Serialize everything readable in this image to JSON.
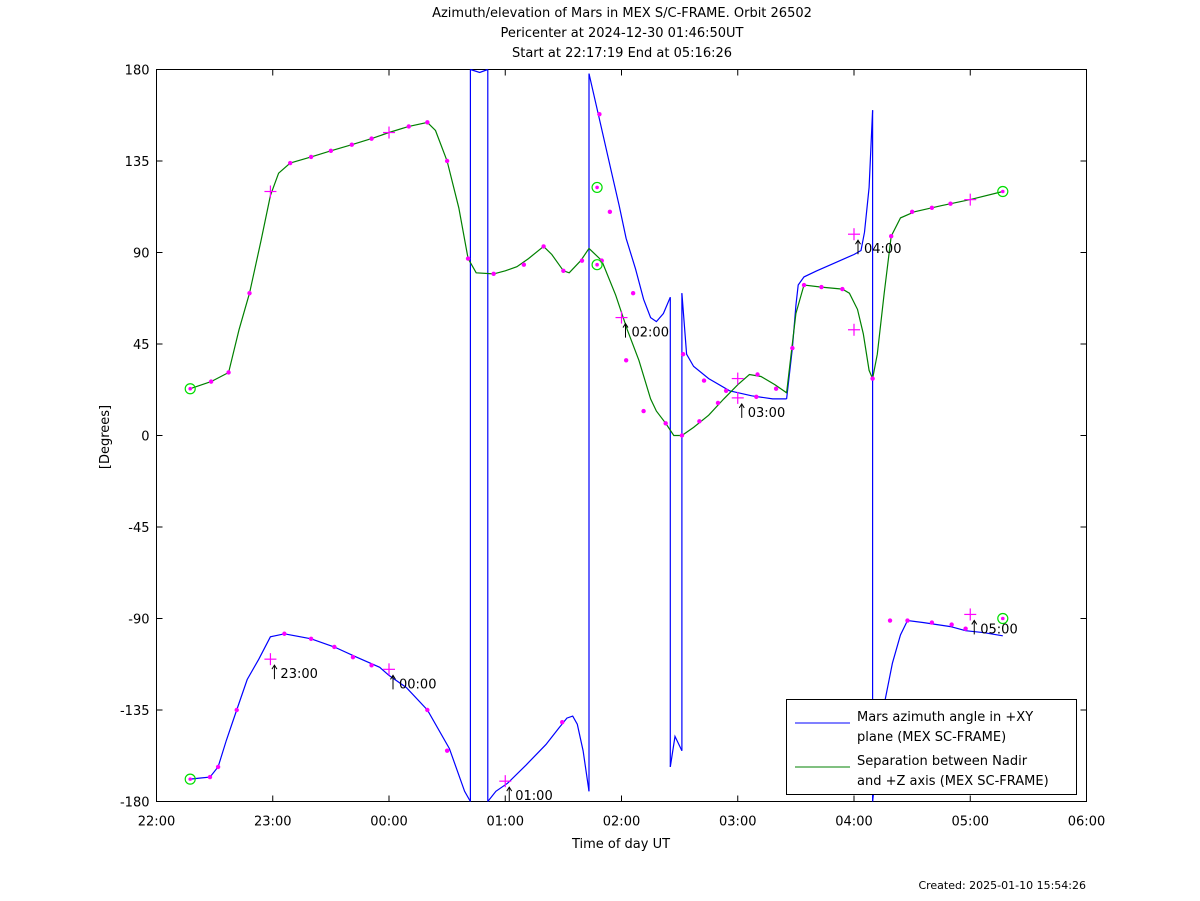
{
  "chart_data": {
    "type": "line",
    "title": "Azimuth/elevation of Mars in MEX S/C-FRAME.  Orbit 26502",
    "subtitle_1": "Pericenter at 2024-12-30 01:46:50UT",
    "subtitle_2": "Start at 22:17:19 End at 05:16:26",
    "xlabel": "Time of day UT",
    "ylabel": "[Degrees]",
    "footer": "Created: 2025-01-10 15:54:26",
    "xlim": [
      0,
      8
    ],
    "ylim": [
      -180,
      180
    ],
    "x_tick_values": [
      0,
      1,
      2,
      3,
      4,
      5,
      6,
      7,
      8
    ],
    "x_tick_labels": [
      "22:00",
      "23:00",
      "00:00",
      "01:00",
      "02:00",
      "03:00",
      "04:00",
      "05:00",
      "06:00"
    ],
    "y_tick_values": [
      -180,
      -135,
      -90,
      -45,
      0,
      45,
      90,
      135,
      180
    ],
    "y_tick_labels": [
      "-180",
      "-135",
      "-90",
      "-45",
      "0",
      "45",
      "90",
      "135",
      "180"
    ],
    "legend_position": "bottom-right",
    "colors": {
      "azimuth": "#0000ff",
      "separation": "#008000",
      "marker": "#ff00ff",
      "endpoint": "#00dd00"
    },
    "series": [
      {
        "name": "Mars azimuth angle in +XY plane (MEX SC-FRAME)",
        "legend_lines": [
          "Mars azimuth angle in +XY",
          "plane (MEX SC-FRAME)"
        ],
        "color": "#0000ff",
        "segments": [
          [
            [
              0.29,
              -169
            ],
            [
              0.37,
              -168.5
            ],
            [
              0.46,
              -168
            ],
            [
              0.53,
              -163
            ],
            [
              0.6,
              -150
            ],
            [
              0.69,
              -135
            ],
            [
              0.78,
              -120
            ],
            [
              0.88,
              -110
            ],
            [
              0.98,
              -99
            ],
            [
              1.1,
              -97.5
            ],
            [
              1.33,
              -100
            ],
            [
              1.53,
              -104
            ],
            [
              1.72,
              -109
            ],
            [
              1.92,
              -114
            ],
            [
              2.0,
              -118
            ],
            [
              2.15,
              -124
            ],
            [
              2.33,
              -135
            ],
            [
              2.52,
              -154
            ],
            [
              2.65,
              -175
            ],
            [
              2.7,
              -180
            ]
          ],
          [
            [
              2.7,
              -180
            ],
            [
              2.7,
              180
            ]
          ],
          [
            [
              2.7,
              180
            ],
            [
              2.78,
              178.5
            ],
            [
              2.85,
              180
            ]
          ],
          [
            [
              2.85,
              180
            ],
            [
              2.85,
              -180
            ]
          ],
          [
            [
              2.85,
              -180
            ],
            [
              2.92,
              -175
            ],
            [
              3.02,
              -171
            ],
            [
              3.18,
              -162
            ],
            [
              3.35,
              -152
            ],
            [
              3.46,
              -144
            ],
            [
              3.53,
              -139
            ],
            [
              3.58,
              -138
            ],
            [
              3.62,
              -142
            ],
            [
              3.67,
              -155
            ],
            [
              3.72,
              -175
            ]
          ],
          [
            [
              3.72,
              -175
            ],
            [
              3.72,
              178
            ]
          ],
          [
            [
              3.72,
              178
            ],
            [
              3.8,
              158
            ],
            [
              3.92,
              128
            ],
            [
              3.98,
              113
            ],
            [
              4.04,
              97
            ],
            [
              4.12,
              82
            ],
            [
              4.19,
              67
            ],
            [
              4.25,
              58
            ],
            [
              4.3,
              56
            ],
            [
              4.36,
              60
            ],
            [
              4.42,
              68
            ]
          ],
          [
            [
              4.42,
              68
            ],
            [
              4.42,
              -163
            ]
          ],
          [
            [
              4.42,
              -163
            ],
            [
              4.46,
              -148
            ],
            [
              4.52,
              -155
            ]
          ],
          [
            [
              4.52,
              -155
            ],
            [
              4.52,
              70
            ]
          ],
          [
            [
              4.52,
              70
            ],
            [
              4.56,
              40
            ],
            [
              4.62,
              34
            ],
            [
              4.75,
              28
            ],
            [
              4.93,
              22
            ],
            [
              5.12,
              19.5
            ],
            [
              5.3,
              18
            ],
            [
              5.42,
              18
            ]
          ],
          [
            [
              5.42,
              18
            ],
            [
              5.47,
              43
            ],
            [
              5.5,
              64
            ],
            [
              5.52,
              74
            ],
            [
              5.57,
              78
            ],
            [
              5.68,
              81
            ],
            [
              5.8,
              84
            ],
            [
              5.92,
              87
            ],
            [
              6.0,
              89
            ],
            [
              6.06,
              91
            ],
            [
              6.09,
              100
            ],
            [
              6.13,
              122
            ],
            [
              6.16,
              160
            ]
          ],
          [
            [
              6.16,
              160
            ],
            [
              6.16,
              -180
            ]
          ],
          [
            [
              6.16,
              -180
            ],
            [
              6.25,
              -135
            ],
            [
              6.33,
              -112
            ],
            [
              6.4,
              -98
            ],
            [
              6.46,
              -91
            ],
            [
              6.6,
              -92
            ],
            [
              6.83,
              -94
            ],
            [
              6.96,
              -96
            ],
            [
              7.12,
              -97
            ],
            [
              7.28,
              -98.5
            ]
          ]
        ]
      },
      {
        "name": "Separation between Nadir and +Z axis (MEX SC-FRAME)",
        "legend_lines": [
          "Separation between Nadir",
          "and +Z axis (MEX SC-FRAME)"
        ],
        "color": "#008000",
        "points": [
          [
            0.29,
            23
          ],
          [
            0.47,
            26.5
          ],
          [
            0.62,
            31
          ],
          [
            0.71,
            52
          ],
          [
            0.8,
            70
          ],
          [
            0.9,
            96
          ],
          [
            0.98,
            118
          ],
          [
            1.05,
            129
          ],
          [
            1.15,
            134
          ],
          [
            1.33,
            137
          ],
          [
            1.5,
            140
          ],
          [
            1.68,
            143
          ],
          [
            1.85,
            146
          ],
          [
            2.0,
            149
          ],
          [
            2.17,
            152
          ],
          [
            2.33,
            154
          ],
          [
            2.4,
            150
          ],
          [
            2.5,
            135
          ],
          [
            2.6,
            112
          ],
          [
            2.68,
            87
          ],
          [
            2.75,
            80
          ],
          [
            2.9,
            79.5
          ],
          [
            3.0,
            81
          ],
          [
            3.1,
            83
          ],
          [
            3.2,
            87
          ],
          [
            3.33,
            93
          ],
          [
            3.4,
            89
          ],
          [
            3.5,
            81
          ],
          [
            3.55,
            80
          ],
          [
            3.65,
            86
          ],
          [
            3.72,
            92
          ],
          [
            3.83,
            86
          ],
          [
            3.95,
            69
          ],
          [
            4.05,
            52
          ],
          [
            4.15,
            37
          ],
          [
            4.25,
            18
          ],
          [
            4.3,
            12
          ],
          [
            4.38,
            6
          ],
          [
            4.45,
            0
          ],
          [
            4.52,
            0
          ],
          [
            4.62,
            4
          ],
          [
            4.75,
            10
          ],
          [
            4.88,
            18
          ],
          [
            5.0,
            25
          ],
          [
            5.1,
            30
          ],
          [
            5.2,
            29
          ],
          [
            5.32,
            25
          ],
          [
            5.42,
            21
          ],
          [
            5.5,
            60
          ],
          [
            5.57,
            74
          ],
          [
            5.72,
            73
          ],
          [
            5.9,
            72
          ],
          [
            5.96,
            70
          ],
          [
            6.03,
            62
          ],
          [
            6.08,
            50
          ],
          [
            6.13,
            32
          ],
          [
            6.16,
            28
          ],
          [
            6.2,
            40
          ],
          [
            6.26,
            70
          ],
          [
            6.32,
            98
          ],
          [
            6.4,
            107
          ],
          [
            6.52,
            110
          ],
          [
            6.75,
            113
          ],
          [
            7.0,
            116
          ],
          [
            7.28,
            120
          ]
        ]
      }
    ],
    "hour_markers": [
      {
        "x": 0.98,
        "y": -110,
        "label": "23:00"
      },
      {
        "x": 2.0,
        "y": -115,
        "label": "00:00"
      },
      {
        "x": 3.0,
        "y": -170,
        "label": "01:00"
      },
      {
        "x": 4.0,
        "y": 58,
        "label": "02:00"
      },
      {
        "x": 5.0,
        "y": 18.5,
        "label": "03:00"
      },
      {
        "x": 6.0,
        "y": 99,
        "label": "04:00"
      },
      {
        "x": 7.0,
        "y": -88,
        "label": "05:00"
      }
    ],
    "hour_plus_markers": [
      [
        0.98,
        120
      ],
      [
        2.0,
        149
      ],
      [
        5.0,
        28
      ],
      [
        6.0,
        52
      ],
      [
        7.0,
        116
      ]
    ],
    "endpoint_markers": [
      [
        0.29,
        23
      ],
      [
        0.29,
        -169
      ],
      [
        3.79,
        122
      ],
      [
        3.79,
        84
      ],
      [
        7.28,
        120
      ],
      [
        7.28,
        -90
      ]
    ],
    "dot_markers": [
      [
        0.47,
        26.5
      ],
      [
        0.62,
        31
      ],
      [
        0.8,
        70
      ],
      [
        1.15,
        134
      ],
      [
        1.33,
        137
      ],
      [
        1.5,
        140
      ],
      [
        1.68,
        143
      ],
      [
        1.85,
        146
      ],
      [
        2.17,
        152
      ],
      [
        2.33,
        154
      ],
      [
        2.5,
        135
      ],
      [
        2.68,
        87
      ],
      [
        2.9,
        79.5
      ],
      [
        3.16,
        84
      ],
      [
        3.33,
        93
      ],
      [
        3.5,
        81
      ],
      [
        3.66,
        86
      ],
      [
        3.83,
        86
      ],
      [
        4.04,
        37
      ],
      [
        4.19,
        12
      ],
      [
        4.38,
        6
      ],
      [
        4.52,
        0
      ],
      [
        4.67,
        7
      ],
      [
        4.83,
        16
      ],
      [
        5.17,
        30
      ],
      [
        5.33,
        23
      ],
      [
        5.47,
        43
      ],
      [
        5.57,
        74
      ],
      [
        5.72,
        73
      ],
      [
        5.9,
        72
      ],
      [
        6.16,
        28
      ],
      [
        6.32,
        98
      ],
      [
        6.5,
        110
      ],
      [
        6.67,
        112
      ],
      [
        6.83,
        114
      ],
      [
        0.46,
        -168
      ],
      [
        0.53,
        -163
      ],
      [
        0.69,
        -135
      ],
      [
        1.1,
        -97.5
      ],
      [
        1.33,
        -100
      ],
      [
        1.53,
        -104
      ],
      [
        1.69,
        -109
      ],
      [
        1.85,
        -113
      ],
      [
        2.33,
        -135
      ],
      [
        2.5,
        -155
      ],
      [
        3.49,
        -141
      ],
      [
        3.81,
        158
      ],
      [
        3.9,
        110
      ],
      [
        4.1,
        70
      ],
      [
        4.53,
        40
      ],
      [
        4.71,
        27
      ],
      [
        4.9,
        22
      ],
      [
        5.16,
        19
      ],
      [
        6.31,
        -91
      ],
      [
        6.46,
        -91
      ],
      [
        6.67,
        -92
      ],
      [
        6.84,
        -93
      ],
      [
        6.96,
        -95
      ]
    ]
  }
}
